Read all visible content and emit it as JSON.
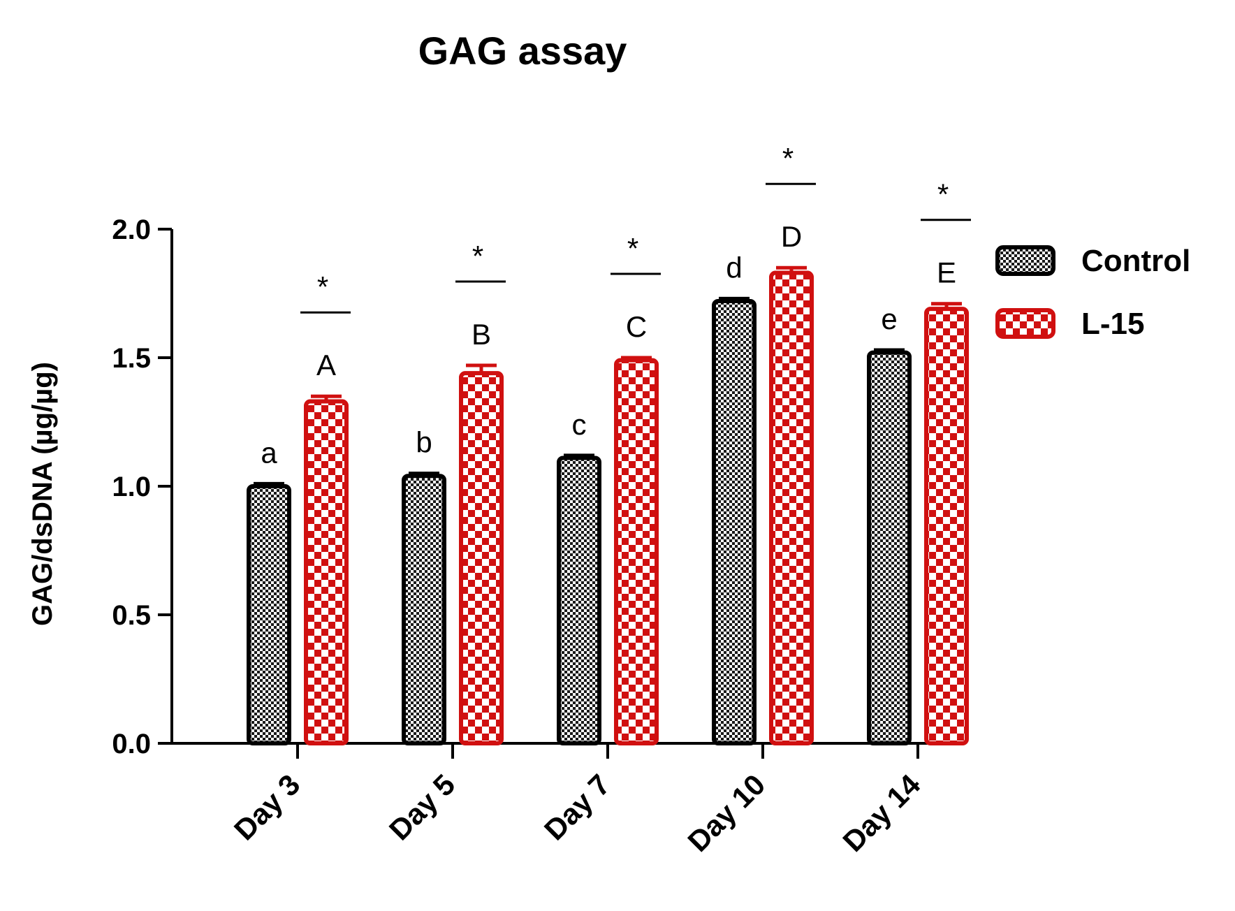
{
  "chart_data": {
    "type": "bar",
    "title": "GAG assay",
    "xlabel": "",
    "ylabel": "GAG/dsDNA (µg/µg)",
    "ylim": [
      0,
      2.0
    ],
    "yticks": [
      "0.0",
      "0.5",
      "1.0",
      "1.5",
      "2.0"
    ],
    "categories": [
      "Day 3",
      "Day 5",
      "Day 7",
      "Day 10",
      "Day 14"
    ],
    "series": [
      {
        "name": "Control",
        "values": [
          1.0,
          1.04,
          1.11,
          1.72,
          1.52
        ],
        "errors": [
          0.01,
          0.01,
          0.01,
          0.01,
          0.01
        ],
        "letters": [
          "a",
          "b",
          "c",
          "d",
          "e"
        ],
        "color": "#000000",
        "pattern": "fine-checker-black"
      },
      {
        "name": "L-15",
        "values": [
          1.33,
          1.44,
          1.49,
          1.83,
          1.69
        ],
        "errors": [
          0.02,
          0.03,
          0.01,
          0.02,
          0.02
        ],
        "letters": [
          "A",
          "B",
          "C",
          "D",
          "E"
        ],
        "color": "#d01010",
        "pattern": "coarse-checker-red"
      }
    ],
    "significance": [
      {
        "category": "Day 3",
        "label": "*"
      },
      {
        "category": "Day 5",
        "label": "*"
      },
      {
        "category": "Day 7",
        "label": "*"
      },
      {
        "category": "Day 10",
        "label": "*"
      },
      {
        "category": "Day 14",
        "label": "*"
      }
    ],
    "legend_position": "right",
    "grid": false
  }
}
